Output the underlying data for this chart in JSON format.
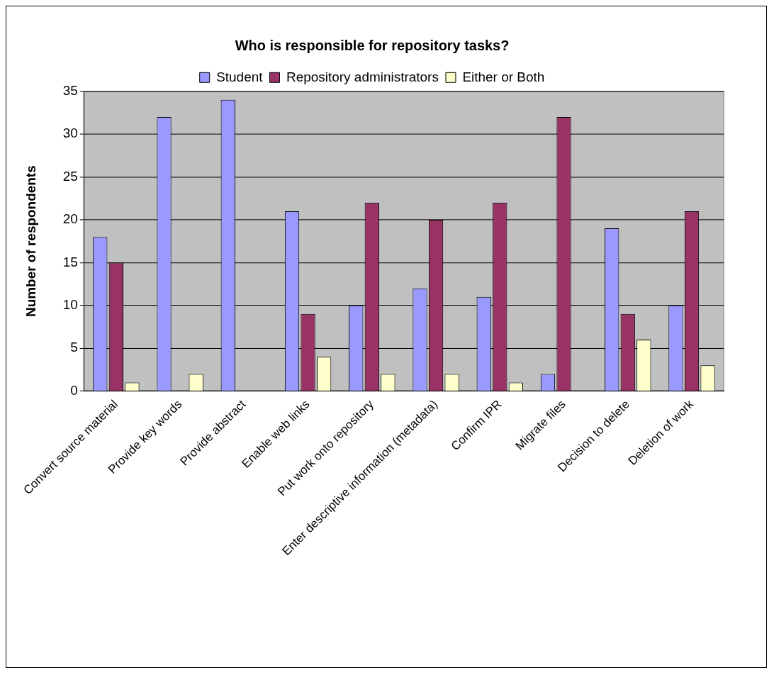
{
  "chart_data": {
    "type": "bar",
    "title": "Who is responsible for repository tasks?",
    "ylabel": "Number of respondents",
    "categories": [
      "Convert source material",
      "Provide key words",
      "Provide abstract",
      "Enable web links",
      "Put work onto repository",
      "Enter descriptive information (metadata)",
      "Confirm IPR",
      "Migrate files",
      "Decision to delete",
      "Deletion of work"
    ],
    "series": [
      {
        "name": "Student",
        "color": "#9999ff",
        "values": [
          18,
          32,
          34,
          21,
          10,
          12,
          11,
          2,
          19,
          10
        ]
      },
      {
        "name": "Repository administrators",
        "color": "#993366",
        "values": [
          15,
          0,
          0,
          9,
          22,
          20,
          22,
          32,
          9,
          21
        ]
      },
      {
        "name": "Either or Both",
        "color": "#ffffcc",
        "values": [
          1,
          2,
          0,
          4,
          2,
          2,
          1,
          0,
          6,
          3
        ]
      }
    ],
    "ylim": [
      0,
      35
    ],
    "yticks": [
      0,
      5,
      10,
      15,
      20,
      25,
      30,
      35
    ],
    "grid": "y",
    "legend": "top"
  }
}
